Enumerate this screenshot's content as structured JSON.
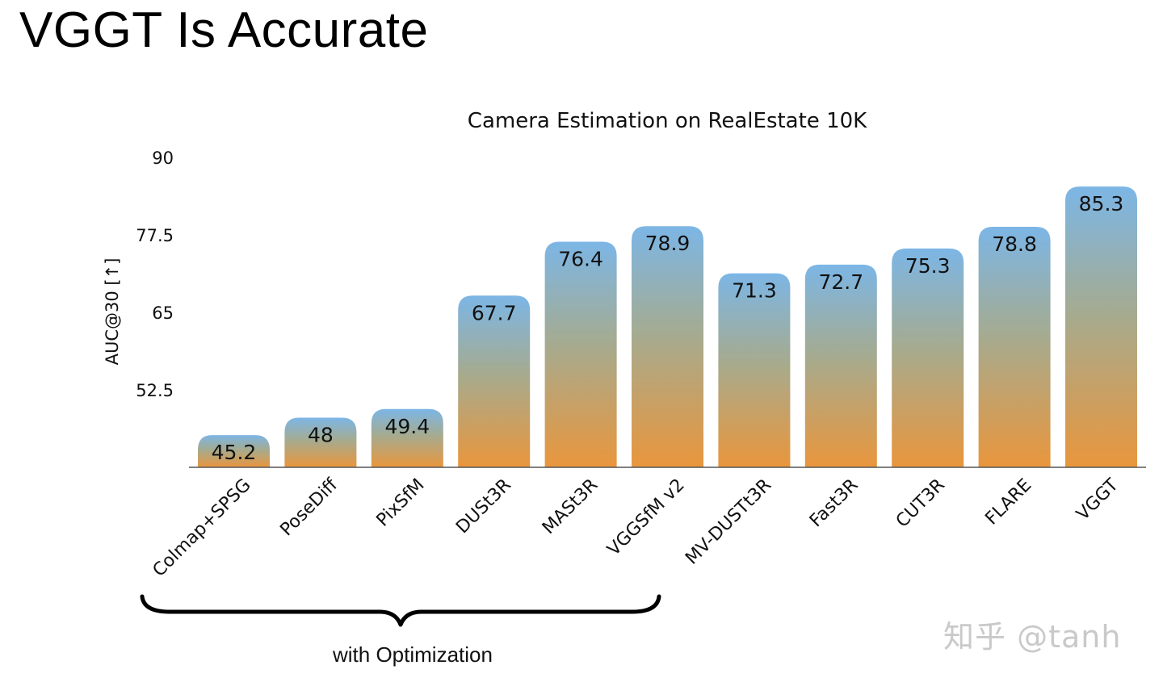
{
  "slide": {
    "title": "VGGT Is Accurate",
    "watermark": "知乎 @tanh"
  },
  "annotation": {
    "group_label": "with Optimization",
    "grouped_categories": [
      "Colmap+SPSG",
      "PoseDiff",
      "PixSfM",
      "DUSt3R",
      "MASt3R",
      "VGGSfM v2"
    ]
  },
  "colors": {
    "bar_top": "#7cb6e6",
    "bar_bottom": "#e9963c",
    "axis": "#555555",
    "text": "#111111"
  },
  "chart_data": {
    "type": "bar",
    "title": "Camera Estimation on RealEstate 10K",
    "xlabel": "",
    "ylabel": "AUC@30 [↑]",
    "ylim": [
      40,
      90
    ],
    "yticks": [
      "90",
      "77.5",
      "65",
      "52.5"
    ],
    "categories": [
      "Colmap+SPSG",
      "PoseDiff",
      "PixSfM",
      "DUSt3R",
      "MASt3R",
      "VGGSfM v2",
      "MV-DUSTt3R",
      "Fast3R",
      "CUT3R",
      "FLARE",
      "VGGT"
    ],
    "values": [
      45.2,
      48,
      49.4,
      67.7,
      76.4,
      78.9,
      71.3,
      72.7,
      75.3,
      78.8,
      85.3
    ],
    "value_labels": [
      "45.2",
      "48",
      "49.4",
      "67.7",
      "76.4",
      "78.9",
      "71.3",
      "72.7",
      "75.3",
      "78.8",
      "85.3"
    ],
    "grid": false
  }
}
